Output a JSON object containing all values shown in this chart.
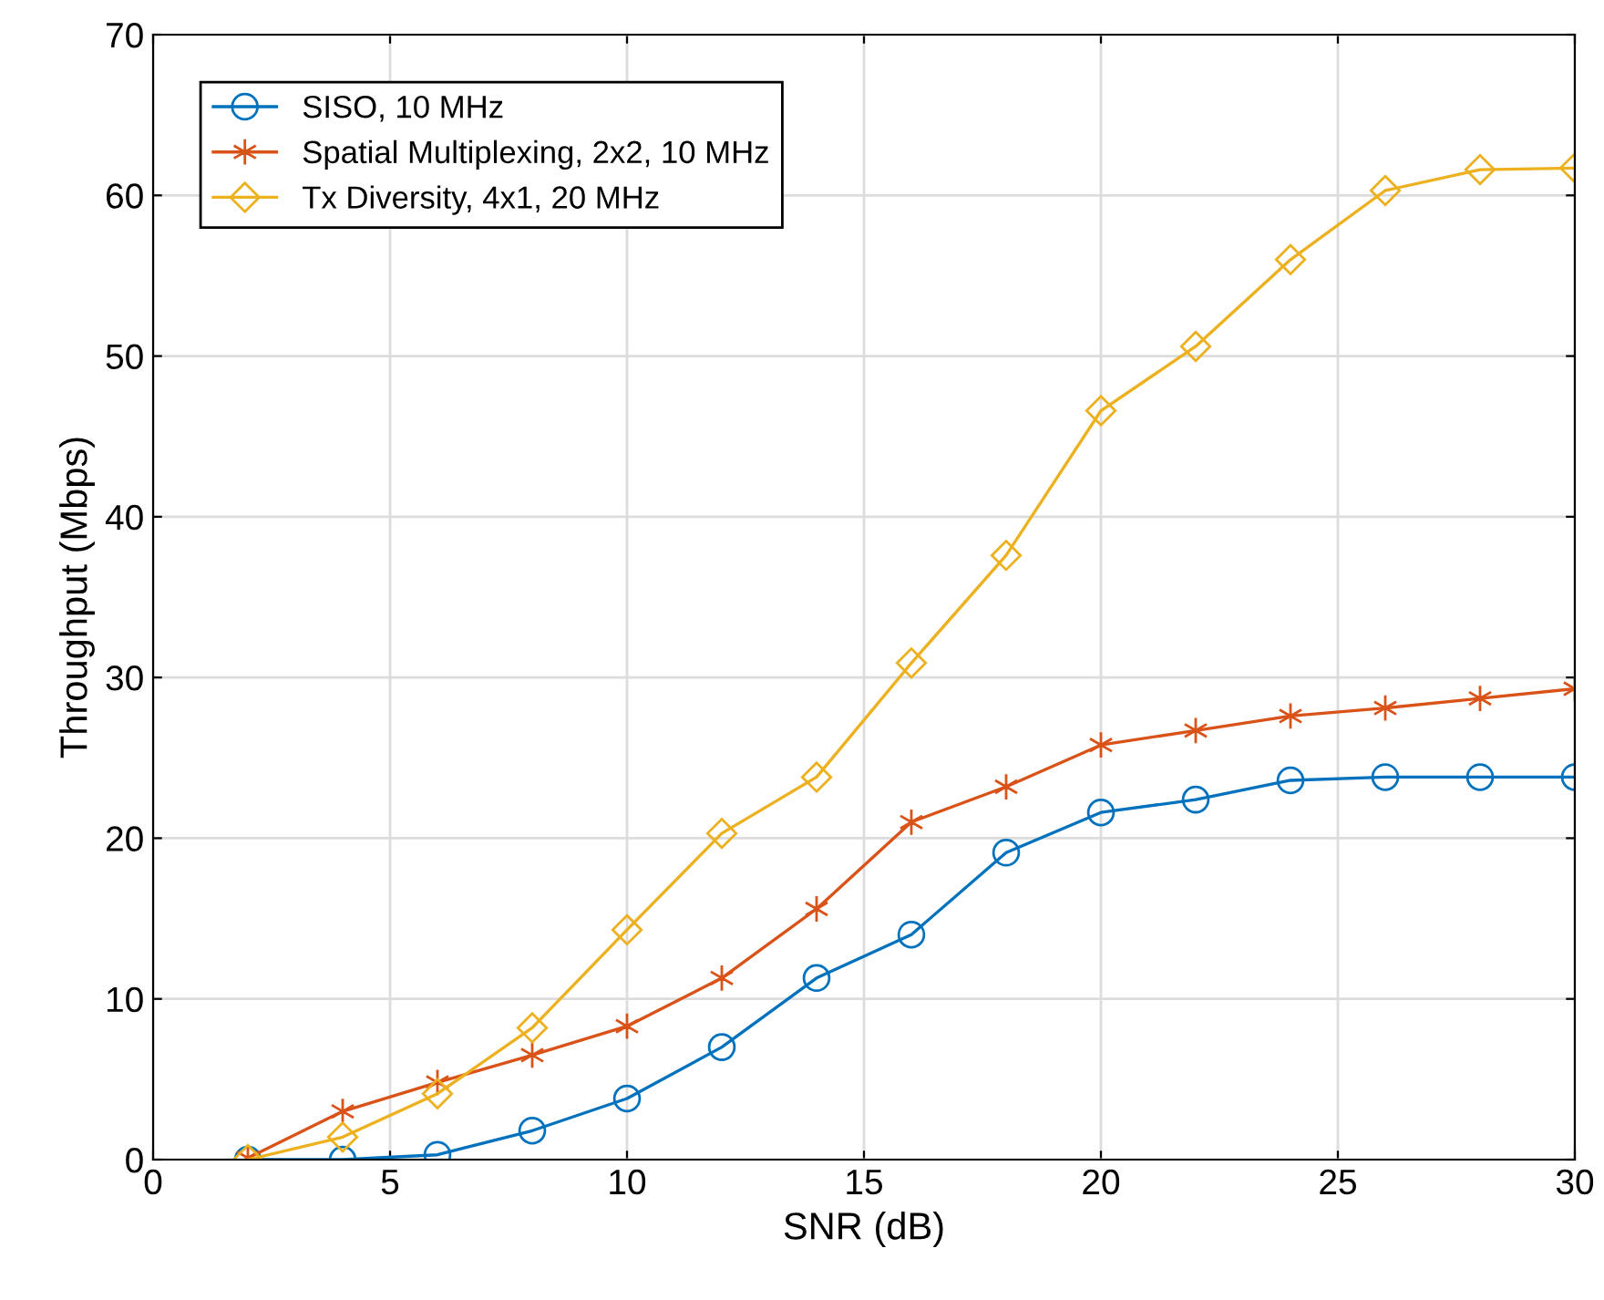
{
  "chart_data": {
    "type": "line",
    "xlabel": "SNR (dB)",
    "ylabel": "Throughput (Mbps)",
    "x": [
      2,
      4,
      6,
      8,
      10,
      12,
      14,
      16,
      18,
      20,
      22,
      24,
      26,
      28,
      30
    ],
    "series": [
      {
        "name": "SISO, 10 MHz",
        "color": "#0072bd",
        "marker": "circle",
        "values": [
          0,
          0,
          0.3,
          1.8,
          3.8,
          7.0,
          11.3,
          14.0,
          19.1,
          21.6,
          22.4,
          23.6,
          23.8,
          23.8,
          23.8
        ]
      },
      {
        "name": "Spatial Multiplexing, 2x2, 10 MHz",
        "color": "#d95319",
        "marker": "cross",
        "values": [
          0.1,
          3.0,
          4.8,
          6.5,
          8.3,
          11.3,
          15.6,
          21.0,
          23.2,
          25.8,
          26.7,
          27.6,
          28.1,
          28.7,
          29.3
        ]
      },
      {
        "name": "Tx Diversity, 4x1, 20 MHz",
        "color": "#edb120",
        "marker": "diamond",
        "values": [
          0,
          1.4,
          4.1,
          8.2,
          14.3,
          20.3,
          23.8,
          30.9,
          37.6,
          46.6,
          50.6,
          56.0,
          60.3,
          61.6,
          61.7
        ]
      }
    ],
    "xlim": [
      0,
      30
    ],
    "xticks": [
      0,
      5,
      10,
      15,
      20,
      25,
      30
    ],
    "ylim": [
      0,
      70
    ],
    "yticks": [
      0,
      10,
      20,
      30,
      40,
      50,
      60,
      70
    ],
    "grid": true,
    "legend": "top left",
    "line_style": "solid"
  }
}
